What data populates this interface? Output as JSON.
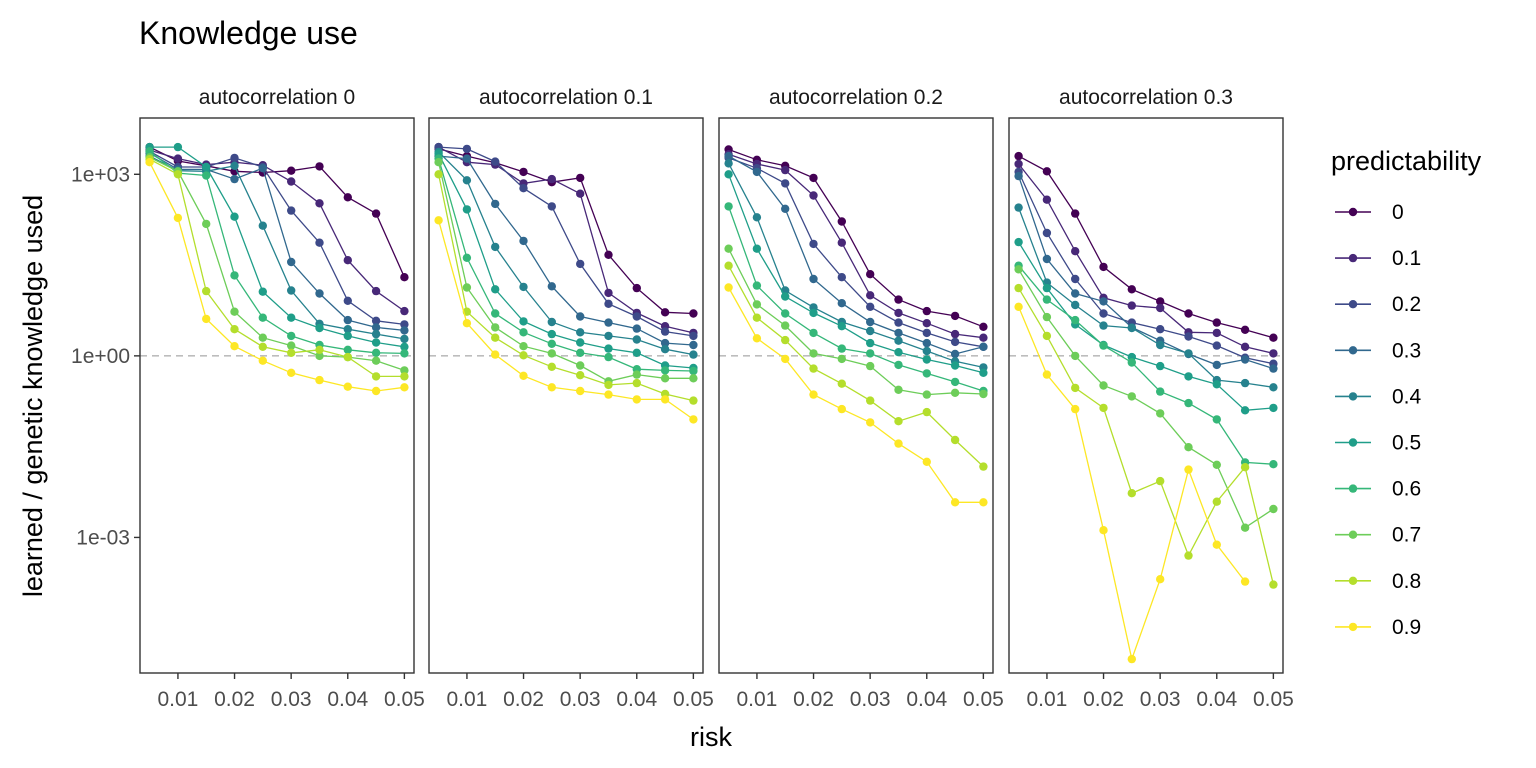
{
  "chart_data": {
    "type": "line",
    "title": "Knowledge use",
    "xlabel": "risk",
    "ylabel": "learned / genetic knowledge used",
    "x": [
      0.005,
      0.01,
      0.015,
      0.02,
      0.025,
      0.03,
      0.035,
      0.04,
      0.045,
      0.05
    ],
    "x_ticks": [
      "0.01",
      "0.02",
      "0.03",
      "0.04",
      "0.05"
    ],
    "x_tick_values": [
      0.01,
      0.02,
      0.03,
      0.04,
      0.05
    ],
    "xlim": [
      0.0033,
      0.0517
    ],
    "y_scale": "log10",
    "y_ticks": [
      "1e+03",
      "1e+00",
      "1e-03"
    ],
    "y_tick_values": [
      1000,
      1,
      0.001
    ],
    "ylim_log10": [
      -5.24,
      3.93
    ],
    "reference_line": {
      "y": 1,
      "style": "dashed",
      "color": "#bdbdbd"
    },
    "grid": false,
    "legend": {
      "title": "predictability",
      "position": "right",
      "entries": [
        "0",
        "0.1",
        "0.2",
        "0.3",
        "0.4",
        "0.5",
        "0.6",
        "0.7",
        "0.8",
        "0.9"
      ]
    },
    "colors": [
      "#440154",
      "#482878",
      "#3E4A89",
      "#31688E",
      "#26828E",
      "#1F9E89",
      "#35B779",
      "#6DCD59",
      "#B4DE2C",
      "#FDE725"
    ],
    "panels": [
      {
        "label": "autocorrelation 0",
        "series": [
          {
            "name": "0",
            "log10_y": [
              3.45,
              3.22,
              3.14,
              3.05,
              3.03,
              3.06,
              3.13,
              2.62,
              2.35,
              1.3
            ]
          },
          {
            "name": "0.1",
            "log10_y": [
              3.4,
              3.26,
              3.16,
              3.2,
              3.15,
              2.88,
              2.52,
              1.58,
              1.07,
              0.74
            ]
          },
          {
            "name": "0.2",
            "log10_y": [
              3.38,
              3.12,
              3.12,
              3.27,
              3.12,
              2.4,
              1.87,
              0.91,
              0.58,
              0.52
            ]
          },
          {
            "name": "0.3",
            "log10_y": [
              3.35,
              3.08,
              3.08,
              2.92,
              3.1,
              1.55,
              1.03,
              0.59,
              0.47,
              0.42
            ]
          },
          {
            "name": "0.4",
            "log10_y": [
              3.3,
              3.06,
              3.05,
              3.14,
              2.15,
              1.08,
              0.53,
              0.44,
              0.36,
              0.28
            ]
          },
          {
            "name": "0.5",
            "log10_y": [
              3.45,
              3.45,
              3.12,
              2.3,
              1.06,
              0.63,
              0.46,
              0.33,
              0.22,
              0.15
            ]
          },
          {
            "name": "0.6",
            "log10_y": [
              3.38,
              3.02,
              2.98,
              1.33,
              0.63,
              0.33,
              0.18,
              0.1,
              0.05,
              0.04
            ]
          },
          {
            "name": "0.7",
            "log10_y": [
              3.28,
              3.05,
              2.18,
              0.73,
              0.3,
              0.17,
              0.0,
              -0.02,
              -0.08,
              -0.24
            ]
          },
          {
            "name": "0.8",
            "log10_y": [
              3.25,
              3.0,
              1.07,
              0.44,
              0.15,
              0.05,
              0.1,
              -0.02,
              -0.34,
              -0.34
            ]
          },
          {
            "name": "0.9",
            "log10_y": [
              3.2,
              2.28,
              0.61,
              0.16,
              -0.08,
              -0.28,
              -0.4,
              -0.51,
              -0.58,
              -0.52
            ]
          }
        ]
      },
      {
        "label": "autocorrelation 0.1",
        "series": [
          {
            "name": "0",
            "log10_y": [
              3.42,
              3.3,
              3.19,
              3.04,
              2.87,
              2.94,
              1.67,
              1.12,
              0.72,
              0.7
            ]
          },
          {
            "name": "0.1",
            "log10_y": [
              3.45,
              3.2,
              3.16,
              2.85,
              2.92,
              2.68,
              1.04,
              0.71,
              0.49,
              0.38
            ]
          },
          {
            "name": "0.2",
            "log10_y": [
              3.45,
              3.42,
              3.21,
              2.77,
              2.47,
              1.52,
              0.86,
              0.65,
              0.4,
              0.33
            ]
          },
          {
            "name": "0.3",
            "log10_y": [
              3.3,
              3.26,
              2.51,
              1.9,
              1.15,
              0.65,
              0.55,
              0.45,
              0.21,
              0.18
            ]
          },
          {
            "name": "0.4",
            "log10_y": [
              3.37,
              2.9,
              1.8,
              1.14,
              0.56,
              0.39,
              0.33,
              0.27,
              0.11,
              0.02
            ]
          },
          {
            "name": "0.5",
            "log10_y": [
              3.34,
              2.42,
              1.1,
              0.57,
              0.36,
              0.22,
              0.12,
              0.05,
              -0.16,
              -0.2
            ]
          },
          {
            "name": "0.6",
            "log10_y": [
              3.26,
              1.62,
              0.7,
              0.39,
              0.2,
              0.05,
              -0.02,
              -0.22,
              -0.24,
              -0.25
            ]
          },
          {
            "name": "0.7",
            "log10_y": [
              3.2,
              1.13,
              0.47,
              0.16,
              0.04,
              -0.16,
              -0.42,
              -0.31,
              -0.37,
              -0.37
            ]
          },
          {
            "name": "0.8",
            "log10_y": [
              3.0,
              0.73,
              0.3,
              0.01,
              -0.18,
              -0.32,
              -0.48,
              -0.45,
              -0.63,
              -0.74
            ]
          },
          {
            "name": "0.9",
            "log10_y": [
              2.24,
              0.54,
              0.02,
              -0.33,
              -0.52,
              -0.58,
              -0.64,
              -0.72,
              -0.72,
              -1.05
            ]
          }
        ]
      },
      {
        "label": "autocorrelation 0.2",
        "series": [
          {
            "name": "0",
            "log10_y": [
              3.41,
              3.24,
              3.14,
              2.94,
              2.22,
              1.35,
              0.93,
              0.74,
              0.66,
              0.48
            ]
          },
          {
            "name": "0.1",
            "log10_y": [
              3.33,
              3.17,
              3.07,
              2.65,
              1.87,
              1.0,
              0.71,
              0.54,
              0.36,
              0.3
            ]
          },
          {
            "name": "0.2",
            "log10_y": [
              3.27,
              3.1,
              2.85,
              1.85,
              1.3,
              0.81,
              0.55,
              0.38,
              0.23,
              0.15
            ]
          },
          {
            "name": "0.3",
            "log10_y": [
              3.3,
              3.04,
              2.43,
              1.27,
              0.87,
              0.56,
              0.38,
              0.21,
              0.03,
              0.15
            ]
          },
          {
            "name": "0.4",
            "log10_y": [
              3.18,
              2.29,
              1.08,
              0.8,
              0.56,
              0.41,
              0.25,
              0.08,
              -0.09,
              -0.19
            ]
          },
          {
            "name": "0.5",
            "log10_y": [
              3.0,
              1.77,
              0.98,
              0.71,
              0.49,
              0.21,
              0.06,
              -0.06,
              -0.16,
              -0.28
            ]
          },
          {
            "name": "0.6",
            "log10_y": [
              2.47,
              1.16,
              0.7,
              0.38,
              0.12,
              0.04,
              -0.15,
              -0.29,
              -0.43,
              -0.58
            ]
          },
          {
            "name": "0.7",
            "log10_y": [
              1.77,
              0.85,
              0.5,
              0.04,
              -0.05,
              -0.17,
              -0.56,
              -0.64,
              -0.61,
              -0.63
            ]
          },
          {
            "name": "0.8",
            "log10_y": [
              1.49,
              0.63,
              0.26,
              -0.21,
              -0.46,
              -0.74,
              -1.08,
              -0.93,
              -1.39,
              -1.83
            ]
          },
          {
            "name": "0.9",
            "log10_y": [
              1.13,
              0.29,
              -0.05,
              -0.64,
              -0.88,
              -1.1,
              -1.45,
              -1.75,
              -2.42,
              -2.42
            ]
          }
        ]
      },
      {
        "label": "autocorrelation 0.3",
        "series": [
          {
            "name": "0",
            "log10_y": [
              3.3,
              3.05,
              2.35,
              1.47,
              1.1,
              0.9,
              0.7,
              0.55,
              0.43,
              0.3
            ]
          },
          {
            "name": "0.1",
            "log10_y": [
              3.17,
              2.58,
              1.73,
              0.96,
              0.83,
              0.79,
              0.39,
              0.38,
              0.15,
              0.04
            ]
          },
          {
            "name": "0.2",
            "log10_y": [
              3.04,
              2.03,
              1.27,
              0.7,
              0.55,
              0.44,
              0.32,
              0.17,
              -0.03,
              -0.13
            ]
          },
          {
            "name": "0.3",
            "log10_y": [
              2.97,
              1.6,
              1.03,
              0.9,
              0.47,
              0.25,
              0.03,
              -0.15,
              -0.06,
              -0.21
            ]
          },
          {
            "name": "0.4",
            "log10_y": [
              2.45,
              1.21,
              0.84,
              0.5,
              0.46,
              0.18,
              0.04,
              -0.4,
              -0.45,
              -0.52
            ]
          },
          {
            "name": "0.5",
            "log10_y": [
              1.88,
              1.12,
              0.52,
              0.18,
              -0.02,
              -0.17,
              -0.34,
              -0.47,
              -0.9,
              -0.86
            ]
          },
          {
            "name": "0.6",
            "log10_y": [
              1.49,
              0.93,
              0.59,
              0.17,
              -0.11,
              -0.59,
              -0.78,
              -1.05,
              -1.76,
              -1.79
            ]
          },
          {
            "name": "0.7",
            "log10_y": [
              1.43,
              0.64,
              0.0,
              -0.49,
              -0.67,
              -0.95,
              -1.51,
              -1.8,
              -2.84,
              -2.53
            ]
          },
          {
            "name": "0.8",
            "log10_y": [
              1.12,
              0.33,
              -0.53,
              -0.86,
              -2.27,
              -2.07,
              -3.3,
              -2.41,
              -1.84,
              -3.78
            ]
          },
          {
            "name": "0.9",
            "log10_y": [
              0.81,
              -0.31,
              -0.88,
              -2.88,
              -5.01,
              -3.69,
              -1.88,
              -3.12,
              -3.73,
              null
            ]
          }
        ]
      }
    ]
  }
}
